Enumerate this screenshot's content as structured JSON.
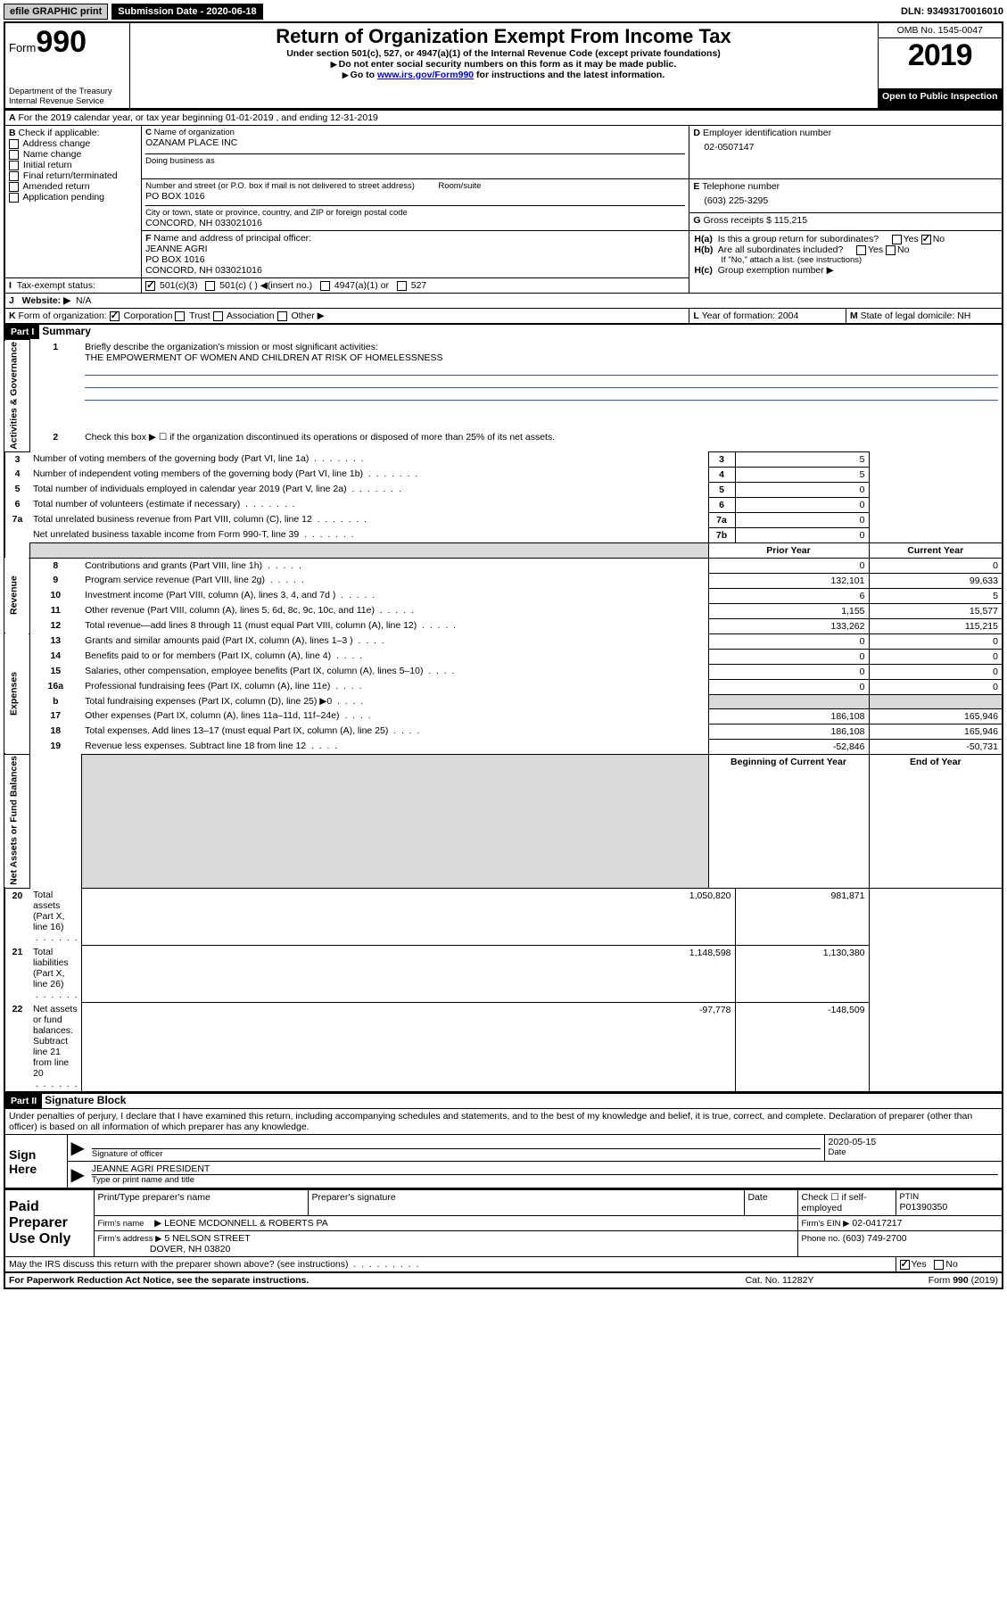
{
  "topbar": {
    "efile": "efile GRAPHIC print",
    "submission_label": "Submission Date -",
    "submission_date": "2020-06-18",
    "dln": "DLN: 93493170016010"
  },
  "header": {
    "form_prefix": "Form",
    "form_number": "990",
    "title": "Return of Organization Exempt From Income Tax",
    "subtitle1": "Under section 501(c), 527, or 4947(a)(1) of the Internal Revenue Code (except private foundations)",
    "subtitle2": "Do not enter social security numbers on this form as it may be made public.",
    "subtitle3_pre": "Go to ",
    "subtitle3_link": "www.irs.gov/Form990",
    "subtitle3_post": " for instructions and the latest information.",
    "dept": "Department of the Treasury",
    "irs": "Internal Revenue Service",
    "omb": "OMB No. 1545-0047",
    "year": "2019",
    "open": "Open to Public Inspection"
  },
  "periodA": "For the 2019 calendar year, or tax year beginning 01-01-2019   , and ending 12-31-2019",
  "boxB": {
    "header": "Check if applicable:",
    "items": [
      "Address change",
      "Name change",
      "Initial return",
      "Final return/terminated",
      "Amended return",
      "Application pending"
    ]
  },
  "boxC": {
    "name_label": "Name of organization",
    "name": "OZANAM PLACE INC",
    "dba_label": "Doing business as",
    "addr_label": "Number and street (or P.O. box if mail is not delivered to street address)",
    "room_label": "Room/suite",
    "addr": "PO BOX 1016",
    "city_label": "City or town, state or province, country, and ZIP or foreign postal code",
    "city": "CONCORD, NH  033021016"
  },
  "boxD": {
    "label": "Employer identification number",
    "value": "02-0507147"
  },
  "boxE": {
    "label": "Telephone number",
    "value": "(603) 225-3295"
  },
  "boxG": {
    "label": "Gross receipts $",
    "value": "115,215"
  },
  "boxF": {
    "label": "Name and address of principal officer:",
    "name": "JEANNE AGRI",
    "addr": "PO BOX 1016",
    "city": "CONCORD, NH  033021016"
  },
  "boxH": {
    "a_label": "Is this a group return for subordinates?",
    "b_label": "Are all subordinates included?",
    "b_note": "If \"No,\" attach a list. (see instructions)",
    "c_label": "Group exemption number"
  },
  "boxI": {
    "label": "Tax-exempt status:",
    "opts": [
      "501(c)(3)",
      "501(c) (  )",
      "(insert no.)",
      "4947(a)(1) or",
      "527"
    ]
  },
  "boxJ": {
    "label": "Website:",
    "value": "N/A"
  },
  "boxK": {
    "label": "Form of organization:",
    "opts": [
      "Corporation",
      "Trust",
      "Association",
      "Other"
    ]
  },
  "boxL": {
    "label": "Year of formation:",
    "value": "2004"
  },
  "boxM": {
    "label": "State of legal domicile:",
    "value": "NH"
  },
  "part1": {
    "header": "Part I",
    "title": "Summary",
    "q1": "Briefly describe the organization's mission or most significant activities:",
    "q1_ans": "THE EMPOWERMENT OF WOMEN AND CHILDREN AT RISK OF HOMELESSNESS",
    "q2": "Check this box ▶ ☐  if the organization discontinued its operations or disposed of more than 25% of its net assets.",
    "lines_gov": [
      {
        "n": "3",
        "t": "Number of voting members of the governing body (Part VI, line 1a)",
        "box": "3",
        "v": "5"
      },
      {
        "n": "4",
        "t": "Number of independent voting members of the governing body (Part VI, line 1b)",
        "box": "4",
        "v": "5"
      },
      {
        "n": "5",
        "t": "Total number of individuals employed in calendar year 2019 (Part V, line 2a)",
        "box": "5",
        "v": "0"
      },
      {
        "n": "6",
        "t": "Total number of volunteers (estimate if necessary)",
        "box": "6",
        "v": "0"
      },
      {
        "n": "7a",
        "t": "Total unrelated business revenue from Part VIII, column (C), line 12",
        "box": "7a",
        "v": "0"
      },
      {
        "n": "",
        "t": "Net unrelated business taxable income from Form 990-T, line 39",
        "box": "7b",
        "v": "0"
      }
    ],
    "col_headers": {
      "prior": "Prior Year",
      "current": "Current Year"
    },
    "lines_rev": [
      {
        "n": "8",
        "t": "Contributions and grants (Part VIII, line 1h)",
        "p": "0",
        "c": "0"
      },
      {
        "n": "9",
        "t": "Program service revenue (Part VIII, line 2g)",
        "p": "132,101",
        "c": "99,633"
      },
      {
        "n": "10",
        "t": "Investment income (Part VIII, column (A), lines 3, 4, and 7d )",
        "p": "6",
        "c": "5"
      },
      {
        "n": "11",
        "t": "Other revenue (Part VIII, column (A), lines 5, 6d, 8c, 9c, 10c, and 11e)",
        "p": "1,155",
        "c": "15,577"
      },
      {
        "n": "12",
        "t": "Total revenue—add lines 8 through 11 (must equal Part VIII, column (A), line 12)",
        "p": "133,262",
        "c": "115,215"
      }
    ],
    "lines_exp": [
      {
        "n": "13",
        "t": "Grants and similar amounts paid (Part IX, column (A), lines 1–3 )",
        "p": "0",
        "c": "0"
      },
      {
        "n": "14",
        "t": "Benefits paid to or for members (Part IX, column (A), line 4)",
        "p": "0",
        "c": "0"
      },
      {
        "n": "15",
        "t": "Salaries, other compensation, employee benefits (Part IX, column (A), lines 5–10)",
        "p": "0",
        "c": "0"
      },
      {
        "n": "16a",
        "t": "Professional fundraising fees (Part IX, column (A), line 11e)",
        "p": "0",
        "c": "0"
      },
      {
        "n": "b",
        "t": "Total fundraising expenses (Part IX, column (D), line 25) ▶0",
        "p": "",
        "c": ""
      },
      {
        "n": "17",
        "t": "Other expenses (Part IX, column (A), lines 11a–11d, 11f–24e)",
        "p": "186,108",
        "c": "165,946"
      },
      {
        "n": "18",
        "t": "Total expenses. Add lines 13–17 (must equal Part IX, column (A), line 25)",
        "p": "186,108",
        "c": "165,946"
      },
      {
        "n": "19",
        "t": "Revenue less expenses. Subtract line 18 from line 12",
        "p": "-52,846",
        "c": "-50,731"
      }
    ],
    "col_headers2": {
      "begin": "Beginning of Current Year",
      "end": "End of Year"
    },
    "lines_net": [
      {
        "n": "20",
        "t": "Total assets (Part X, line 16)",
        "p": "1,050,820",
        "c": "981,871"
      },
      {
        "n": "21",
        "t": "Total liabilities (Part X, line 26)",
        "p": "1,148,598",
        "c": "1,130,380"
      },
      {
        "n": "22",
        "t": "Net assets or fund balances. Subtract line 21 from line 20",
        "p": "-97,778",
        "c": "-148,509"
      }
    ],
    "sidebar": {
      "gov": "Activities & Governance",
      "rev": "Revenue",
      "exp": "Expenses",
      "net": "Net Assets or Fund Balances"
    }
  },
  "part2": {
    "header": "Part II",
    "title": "Signature Block",
    "perjury": "Under penalties of perjury, I declare that I have examined this return, including accompanying schedules and statements, and to the best of my knowledge and belief, it is true, correct, and complete. Declaration of preparer (other than officer) is based on all information of which preparer has any knowledge.",
    "sign_here": "Sign Here",
    "sig_officer": "Signature of officer",
    "sig_date_label": "Date",
    "sig_date": "2020-05-15",
    "officer_name": "JEANNE AGRI PRESIDENT",
    "type_name": "Type or print name and title",
    "paid": "Paid Preparer Use Only",
    "prep_name_label": "Print/Type preparer's name",
    "prep_sig_label": "Preparer's signature",
    "date_label": "Date",
    "check_label": "Check ☐ if self-employed",
    "ptin_label": "PTIN",
    "ptin": "P01390350",
    "firm_name_label": "Firm's name",
    "firm_name": "LEONE MCDONNELL & ROBERTS PA",
    "firm_ein_label": "Firm's EIN ▶",
    "firm_ein": "02-0417217",
    "firm_addr_label": "Firm's address ▶",
    "firm_addr1": "5 NELSON STREET",
    "firm_addr2": "DOVER, NH  03820",
    "firm_phone_label": "Phone no.",
    "firm_phone": "(603) 749-2700",
    "discuss": "May the IRS discuss this return with the preparer shown above? (see instructions)"
  },
  "footer": {
    "pra": "For Paperwork Reduction Act Notice, see the separate instructions.",
    "cat": "Cat. No. 11282Y",
    "form": "Form 990 (2019)"
  }
}
